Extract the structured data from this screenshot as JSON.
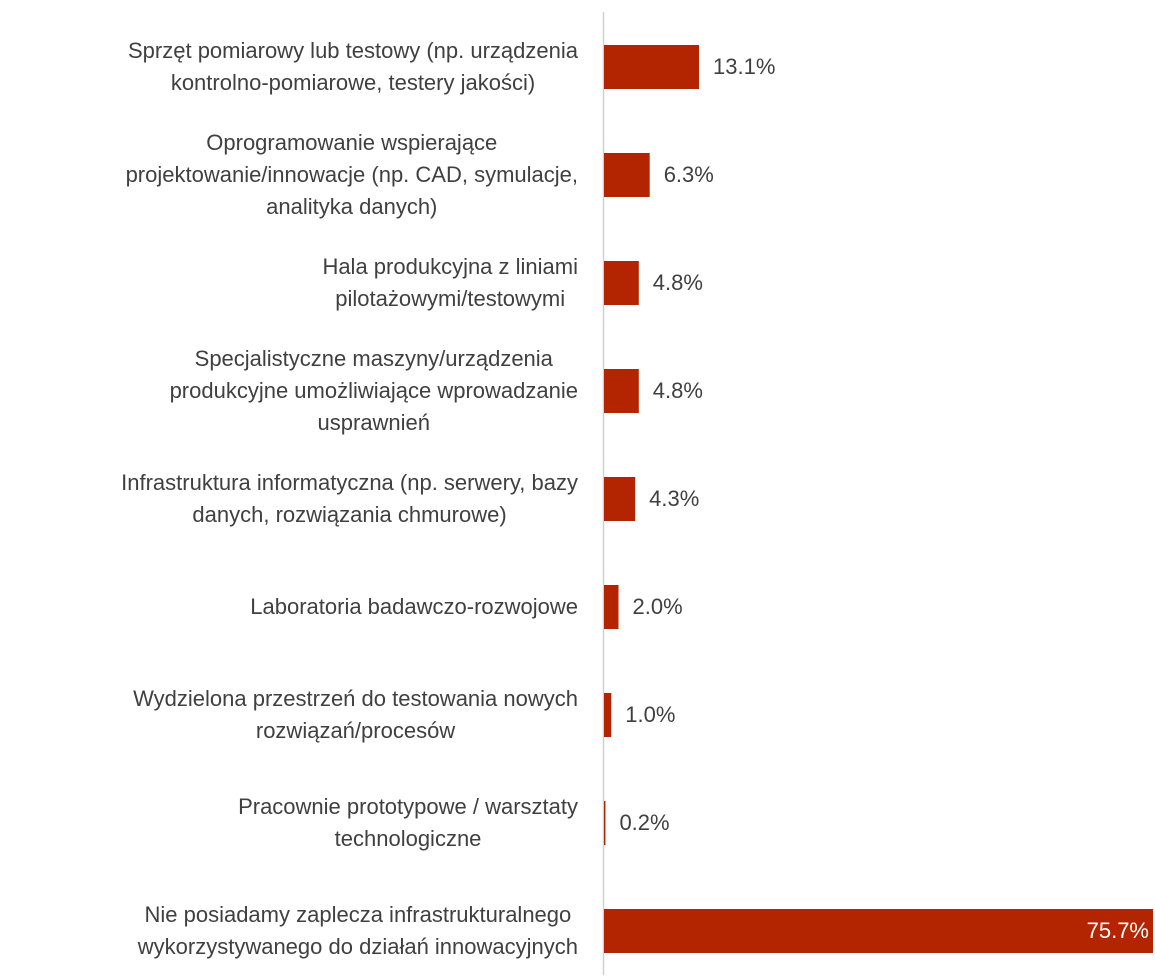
{
  "chart_data": {
    "type": "bar",
    "orientation": "horizontal",
    "color": "#b32500",
    "categories": [
      [
        "Sprzęt pomiarowy lub testowy (np. urządzenia",
        "kontrolno-pomiarowe, testery jakości)"
      ],
      [
        "Oprogramowanie wspierające",
        "projektowanie/innowacje (np. CAD, symulacje,",
        "analityka danych)"
      ],
      [
        "Hala produkcyjna z liniami",
        "pilotażowymi/testowymi"
      ],
      [
        "Specjalistyczne maszyny/urządzenia",
        "produkcyjne umożliwiające wprowadzanie",
        "usprawnień"
      ],
      [
        "Infrastruktura informatyczna (np. serwery, bazy",
        "danych, rozwiązania chmurowe)"
      ],
      [
        "Laboratoria badawczo-rozwojowe"
      ],
      [
        "Wydzielona przestrzeń do testowania nowych",
        "rozwiązań/procesów"
      ],
      [
        "Pracownie prototypowe / warsztaty",
        "technologiczne"
      ],
      [
        "Nie posiadamy zaplecza infrastrukturalnego",
        "wykorzystywanego do działań innowacyjnych"
      ]
    ],
    "values": [
      13.1,
      6.3,
      4.8,
      4.8,
      4.3,
      2.0,
      1.0,
      0.2,
      75.7
    ],
    "value_labels": [
      "13.1%",
      "6.3%",
      "4.8%",
      "4.8%",
      "4.3%",
      "2.0%",
      "1.0%",
      "0.2%",
      "75.7%"
    ]
  }
}
